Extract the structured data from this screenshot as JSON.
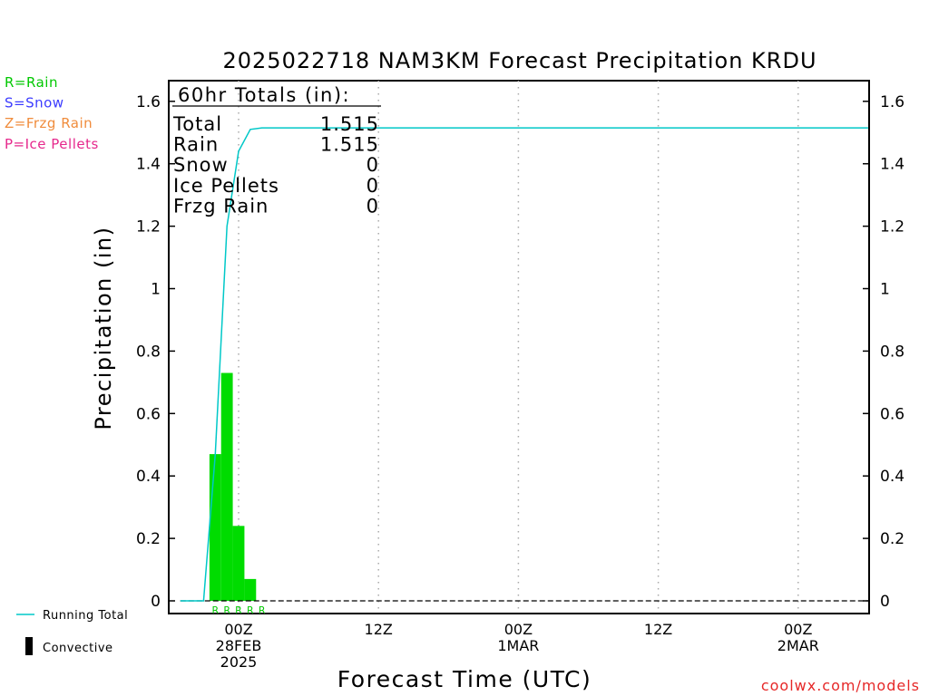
{
  "chart_data": {
    "type": "bar",
    "title": "2025022718 NAM3KM Forecast Precipitation KRDU",
    "xlabel": "Forecast Time (UTC)",
    "ylabel": "Precipitation (in)",
    "ylim": [
      0,
      1.65
    ],
    "yticks": [
      0,
      0.2,
      0.4,
      0.6,
      0.8,
      1,
      1.2,
      1.4,
      1.6
    ],
    "ytick_labels": [
      "0",
      "0.2",
      "0.4",
      "0.6",
      "0.8",
      "1",
      "1.2",
      "1.4",
      "1.6"
    ],
    "xlim_hours": [
      -6,
      54
    ],
    "xticks": [
      {
        "hour": 0,
        "lines": [
          "00Z",
          "28FEB",
          "2025"
        ]
      },
      {
        "hour": 12,
        "lines": [
          "12Z"
        ]
      },
      {
        "hour": 24,
        "lines": [
          "00Z",
          "1MAR"
        ]
      },
      {
        "hour": 36,
        "lines": [
          "12Z"
        ]
      },
      {
        "hour": 48,
        "lines": [
          "00Z",
          "2MAR"
        ]
      }
    ],
    "grid": "vertical dotted",
    "bars": [
      {
        "start": -2.5,
        "end": -1.5,
        "value": 0.47
      },
      {
        "start": -1.5,
        "end": -0.5,
        "value": 0.73
      },
      {
        "start": -0.5,
        "end": 0.5,
        "value": 0.24
      },
      {
        "start": 0.5,
        "end": 1.5,
        "value": 0.07
      }
    ],
    "precip_type_labels": [
      {
        "hour": -2.0,
        "text": "R"
      },
      {
        "hour": -1.0,
        "text": "R"
      },
      {
        "hour": 0.0,
        "text": "R"
      },
      {
        "hour": 1.0,
        "text": "R"
      },
      {
        "hour": 2.0,
        "text": "R"
      }
    ],
    "series": [
      {
        "name": "Running Total",
        "x": [
          -5,
          -3,
          -2,
          -1,
          0,
          1,
          2,
          54
        ],
        "y": [
          0,
          0,
          0.47,
          1.2,
          1.44,
          1.51,
          1.515,
          1.515
        ]
      }
    ],
    "totals_box": {
      "header": "60hr Totals (in):",
      "rows": [
        {
          "label": "Total",
          "value": "1.515"
        },
        {
          "label": "Rain",
          "value": "1.515"
        },
        {
          "label": "Snow",
          "value": "0"
        },
        {
          "label": "Ice Pellets",
          "value": "0"
        },
        {
          "label": "Frzg Rain",
          "value": "0"
        }
      ]
    },
    "type_legend": [
      {
        "text": "R=Rain",
        "color": "#00c800"
      },
      {
        "text": "S=Snow",
        "color": "#3c3cff"
      },
      {
        "text": "Z=Frzg Rain",
        "color": "#f08c3c"
      },
      {
        "text": "P=Ice Pellets",
        "color": "#e6288c"
      }
    ],
    "bottom_legend": [
      {
        "text": "Running Total",
        "kind": "line"
      },
      {
        "text": "Convective",
        "kind": "box"
      }
    ],
    "credit": "coolwx.com/models",
    "colors": {
      "rain_bar": "#00dc00",
      "running_total": "#00c8c8",
      "rain_label": "#00c800",
      "credit": "#e62828"
    }
  }
}
